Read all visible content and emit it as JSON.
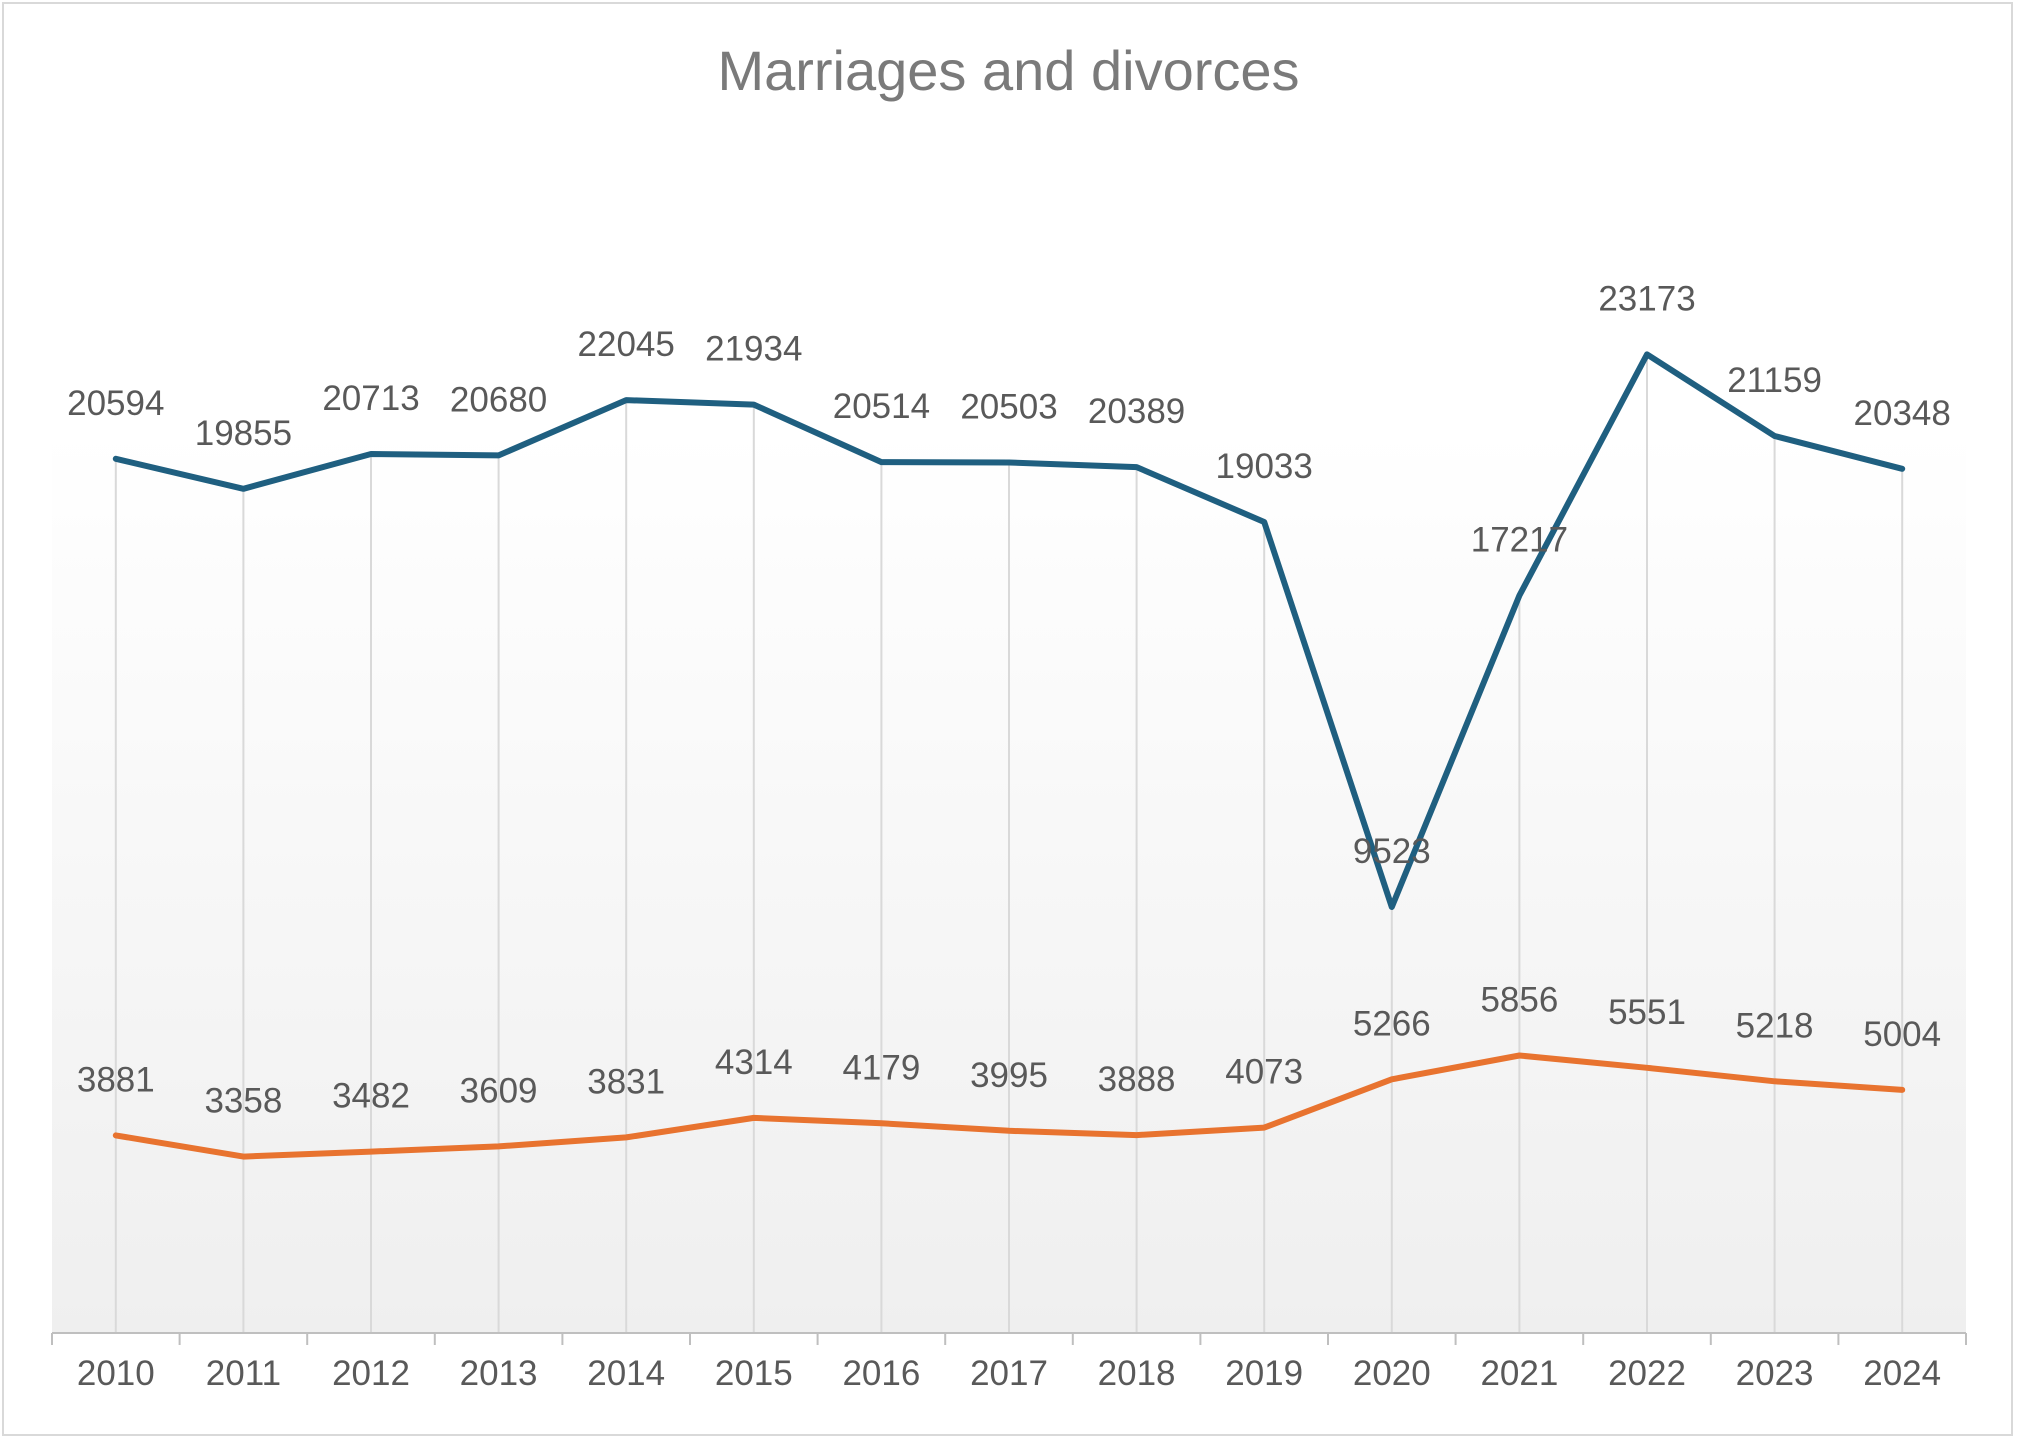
{
  "chart_data": {
    "type": "line",
    "title": "Marriages and divorces",
    "xlabel": "",
    "ylabel": "",
    "categories": [
      "2010",
      "2011",
      "2012",
      "2013",
      "2014",
      "2015",
      "2016",
      "2017",
      "2018",
      "2019",
      "2020",
      "2021",
      "2022",
      "2023",
      "2024"
    ],
    "series": [
      {
        "key": "marriages",
        "color": "#1f5f80",
        "values": [
          20594,
          19855,
          20713,
          20680,
          22045,
          21934,
          20514,
          20503,
          20389,
          19033,
          9523,
          17217,
          23173,
          21159,
          20348
        ]
      },
      {
        "key": "divorces",
        "color": "#e8732f",
        "values": [
          3881,
          3358,
          3482,
          3609,
          3831,
          4314,
          4179,
          3995,
          3888,
          4073,
          5266,
          5856,
          5551,
          5218,
          5004
        ]
      }
    ],
    "ylim": [
      -1000,
      26000
    ],
    "grid": "vertical",
    "legend": "none",
    "data_labels": true,
    "background": "gradient white to light gray"
  }
}
